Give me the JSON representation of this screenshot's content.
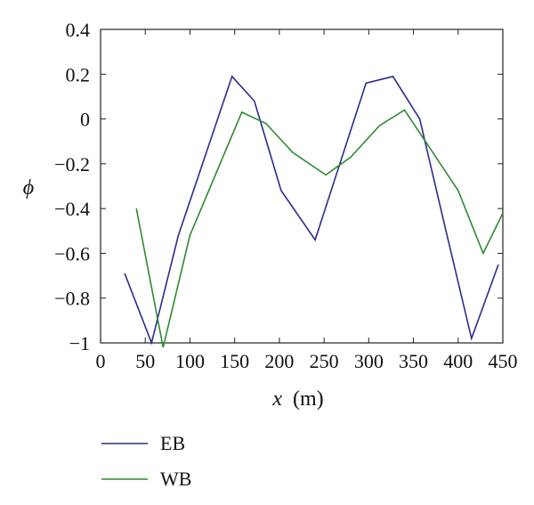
{
  "chart_data": {
    "type": "line",
    "xlabel_var": "x",
    "xlabel_unit": "(m)",
    "ylabel": "ϕ",
    "xlim": [
      0,
      450
    ],
    "ylim": [
      -1,
      0.4
    ],
    "xticks": [
      "0",
      "50",
      "100",
      "150",
      "200",
      "250",
      "300",
      "350",
      "400",
      "450"
    ],
    "yticks": [
      "0.4",
      "0.2",
      "0",
      "−0.2",
      "−0.4",
      "−0.6",
      "−0.8",
      "−1"
    ],
    "grid": false,
    "legend_position": "below",
    "series": [
      {
        "name": "EB",
        "color": "#2b2b8f",
        "x": [
          27,
          57,
          87,
          147,
          172,
          202,
          240,
          297,
          327,
          357,
          387,
          415,
          445
        ],
        "y": [
          -0.69,
          -1.0,
          -0.52,
          0.19,
          0.08,
          -0.32,
          -0.54,
          0.16,
          0.19,
          0.0,
          -0.51,
          -0.98,
          -0.65
        ]
      },
      {
        "name": "WB",
        "color": "#2e8b2e",
        "x": [
          40,
          70,
          100,
          158,
          185,
          215,
          252,
          280,
          312,
          340,
          400,
          428,
          450
        ],
        "y": [
          -0.4,
          -1.02,
          -0.52,
          0.03,
          -0.02,
          -0.15,
          -0.25,
          -0.17,
          -0.03,
          0.04,
          -0.32,
          -0.6,
          -0.42
        ]
      }
    ]
  }
}
